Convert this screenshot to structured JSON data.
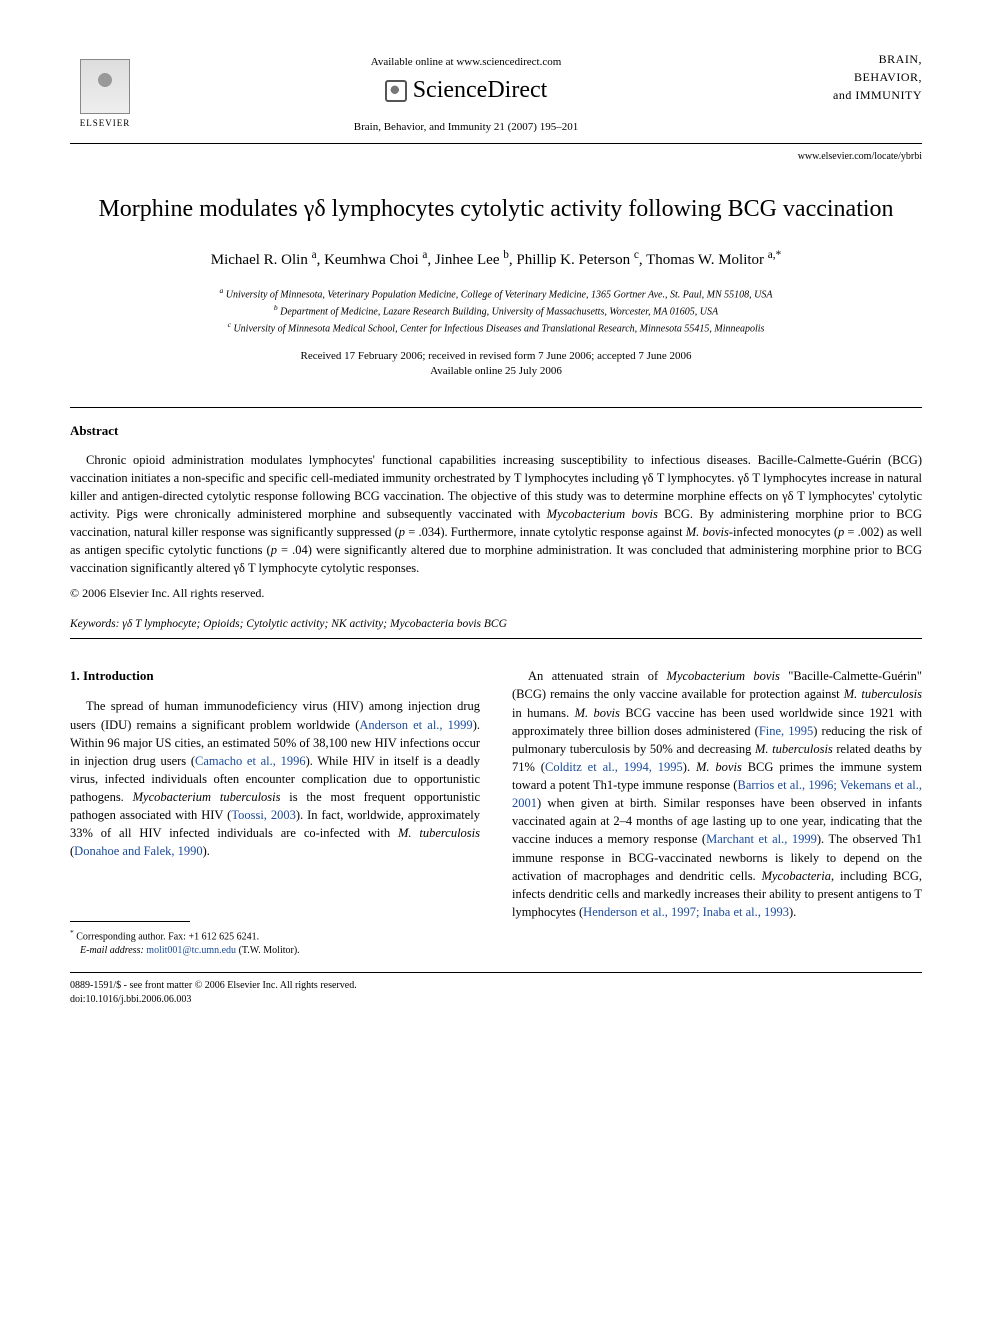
{
  "header": {
    "available_online": "Available online at www.sciencedirect.com",
    "sciencedirect": "ScienceDirect",
    "journal_ref": "Brain, Behavior, and Immunity 21 (2007) 195–201",
    "elsevier": "ELSEVIER",
    "journal_name_line1": "BRAIN,",
    "journal_name_line2": "BEHAVIOR,",
    "journal_name_line3": "and IMMUNITY",
    "journal_url": "www.elsevier.com/locate/ybrbi"
  },
  "title": "Morphine modulates γδ lymphocytes cytolytic activity following BCG vaccination",
  "authors_html": "Michael R. Olin <sup>a</sup>, Keumhwa Choi <sup>a</sup>, Jinhee Lee <sup>b</sup>, Phillip K. Peterson <sup>c</sup>, Thomas W. Molitor <sup>a,*</sup>",
  "affiliations": {
    "a": "University of Minnesota, Veterinary Population Medicine, College of Veterinary Medicine, 1365 Gortner Ave., St. Paul, MN 55108, USA",
    "b": "Department of Medicine, Lazare Research Building, University of Massachusetts, Worcester, MA 01605, USA",
    "c": "University of Minnesota Medical School, Center for Infectious Diseases and Translational Research, Minnesota 55415, Minneapolis"
  },
  "dates": {
    "received": "Received 17 February 2006; received in revised form 7 June 2006; accepted 7 June 2006",
    "online": "Available online 25 July 2006"
  },
  "abstract": {
    "heading": "Abstract",
    "text": "Chronic opioid administration modulates lymphocytes' functional capabilities increasing susceptibility to infectious diseases. Bacille-Calmette-Guérin (BCG) vaccination initiates a non-specific and specific cell-mediated immunity orchestrated by T lymphocytes including γδ T lymphocytes. γδ T lymphocytes increase in natural killer and antigen-directed cytolytic response following BCG vaccination. The objective of this study was to determine morphine effects on γδ T lymphocytes' cytolytic activity. Pigs were chronically administered morphine and subsequently vaccinated with Mycobacterium bovis BCG. By administering morphine prior to BCG vaccination, natural killer response was significantly suppressed (p = .034). Furthermore, innate cytolytic response against M. bovis-infected monocytes (p = .002) as well as antigen specific cytolytic functions (p = .04) were significantly altered due to morphine administration. It was concluded that administering morphine prior to BCG vaccination significantly altered γδ T lymphocyte cytolytic responses.",
    "copyright": "© 2006 Elsevier Inc. All rights reserved."
  },
  "keywords": {
    "label": "Keywords:",
    "text": "γδ T lymphocyte; Opioids; Cytolytic activity; NK activity; Mycobacteria bovis BCG"
  },
  "intro": {
    "heading": "1. Introduction",
    "col1_html": "The spread of human immunodeficiency virus (HIV) among injection drug users (IDU) remains a significant problem worldwide (<span class='link'>Anderson et al., 1999</span>). Within 96 major US cities, an estimated 50% of 38,100 new HIV infections occur in injection drug users (<span class='link'>Camacho et al., 1996</span>). While HIV in itself is a deadly virus, infected individuals often encounter complication due to opportunistic pathogens. <span class='ital'>Mycobacterium tuberculosis</span> is the most frequent opportunistic pathogen associated with HIV (<span class='link'>Toossi, 2003</span>). In fact, worldwide, approximately 33% of all HIV infected individuals are co-infected with <span class='ital'>M. tuberculosis</span> (<span class='link'>Donahoe and Falek, 1990</span>).",
    "col2_html": "An attenuated strain of <span class='ital'>Mycobacterium bovis</span> \"Bacille-Calmette-Guérin\" (BCG) remains the only vaccine available for protection against <span class='ital'>M. tuberculosis</span> in humans. <span class='ital'>M. bovis</span> BCG vaccine has been used worldwide since 1921 with approximately three billion doses administered (<span class='link'>Fine, 1995</span>) reducing the risk of pulmonary tuberculosis by 50% and decreasing <span class='ital'>M. tuberculosis</span> related deaths by 71% (<span class='link'>Colditz et al., 1994, 1995</span>). <span class='ital'>M. bovis</span> BCG primes the immune system toward a potent Th1-type immune response (<span class='link'>Barrios et al., 1996; Vekemans et al., 2001</span>) when given at birth. Similar responses have been observed in infants vaccinated again at 2–4 months of age lasting up to one year, indicating that the vaccine induces a memory response (<span class='link'>Marchant et al., 1999</span>). The observed Th1 immune response in BCG-vaccinated newborns is likely to depend on the activation of macrophages and dendritic cells. <span class='ital'>Mycobacteria</span>, including BCG, infects dendritic cells and markedly increases their ability to present antigens to T lymphocytes (<span class='link'>Henderson et al., 1997; Inaba et al., 1993</span>)."
  },
  "footnote": {
    "corresponding": "Corresponding author. Fax: +1 612 625 6241.",
    "email_label": "E-mail address:",
    "email": "molit001@tc.umn.edu",
    "email_person": "(T.W. Molitor)."
  },
  "footer": {
    "issn": "0889-1591/$ - see front matter © 2006 Elsevier Inc. All rights reserved.",
    "doi": "doi:10.1016/j.bbi.2006.06.003"
  }
}
